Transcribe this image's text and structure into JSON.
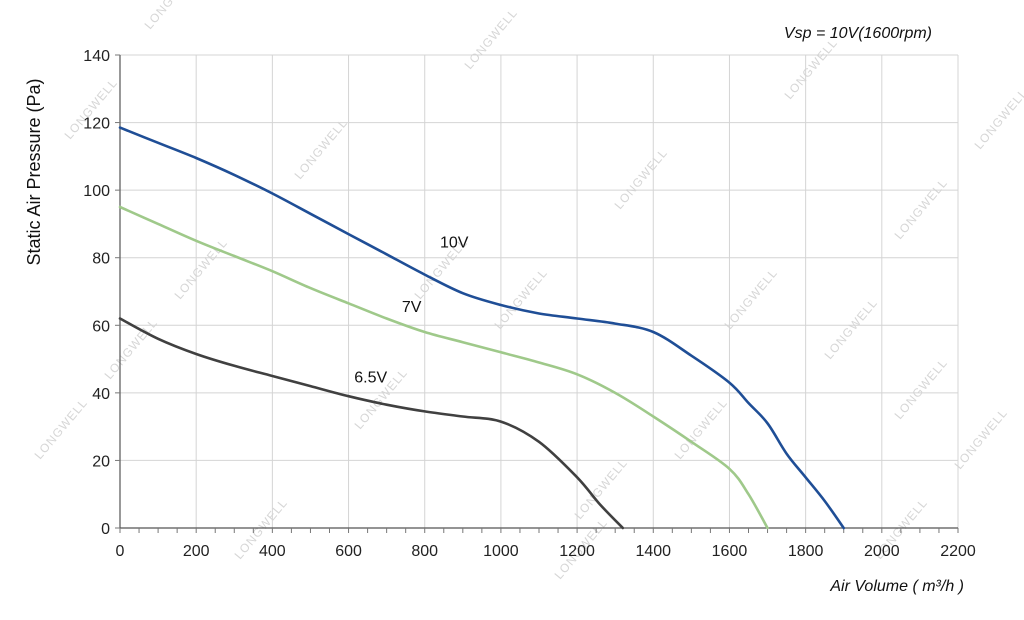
{
  "watermark_text": "LONGWELL",
  "chart_data": {
    "type": "line",
    "title": "Vsp = 10V(1600rpm)",
    "xlabel": "Air Volume ( m³/h )",
    "ylabel": "Static Air Pressure  (Pa)",
    "xlim": [
      0,
      2200
    ],
    "ylim": [
      0,
      140
    ],
    "xticks": [
      "0",
      "200",
      "400",
      "600",
      "800",
      "1000",
      "1200",
      "1400",
      "1600",
      "1800",
      "2000",
      "2200"
    ],
    "yticks": [
      "0",
      "20",
      "40",
      "60",
      "80",
      "100",
      "120",
      "140"
    ],
    "grid": true,
    "series": [
      {
        "name": "10V",
        "color": "#1f4e96",
        "points": [
          [
            0,
            118.5
          ],
          [
            100,
            114
          ],
          [
            200,
            109.5
          ],
          [
            300,
            104.5
          ],
          [
            400,
            99
          ],
          [
            500,
            93
          ],
          [
            600,
            87
          ],
          [
            700,
            81
          ],
          [
            800,
            75
          ],
          [
            900,
            69.5
          ],
          [
            1000,
            66
          ],
          [
            1100,
            63.5
          ],
          [
            1200,
            62
          ],
          [
            1300,
            60.5
          ],
          [
            1400,
            58
          ],
          [
            1500,
            51
          ],
          [
            1600,
            43
          ],
          [
            1650,
            37
          ],
          [
            1700,
            31
          ],
          [
            1750,
            22
          ],
          [
            1800,
            15
          ],
          [
            1850,
            8
          ],
          [
            1900,
            0
          ]
        ]
      },
      {
        "name": "7V",
        "color": "#9fc98a",
        "points": [
          [
            0,
            95
          ],
          [
            100,
            90
          ],
          [
            200,
            85
          ],
          [
            300,
            80.5
          ],
          [
            400,
            76
          ],
          [
            500,
            71
          ],
          [
            600,
            66.5
          ],
          [
            700,
            62
          ],
          [
            800,
            58
          ],
          [
            900,
            55
          ],
          [
            1000,
            52
          ],
          [
            1100,
            49
          ],
          [
            1200,
            45.5
          ],
          [
            1300,
            40
          ],
          [
            1400,
            33
          ],
          [
            1500,
            25.5
          ],
          [
            1600,
            17.5
          ],
          [
            1650,
            10
          ],
          [
            1700,
            0
          ]
        ]
      },
      {
        "name": "6.5V",
        "color": "#404040",
        "points": [
          [
            0,
            62
          ],
          [
            100,
            56
          ],
          [
            200,
            51.5
          ],
          [
            300,
            48
          ],
          [
            400,
            45
          ],
          [
            500,
            42
          ],
          [
            600,
            39
          ],
          [
            700,
            36.5
          ],
          [
            800,
            34.5
          ],
          [
            900,
            33
          ],
          [
            1000,
            31.5
          ],
          [
            1100,
            25.5
          ],
          [
            1200,
            15
          ],
          [
            1260,
            7
          ],
          [
            1320,
            0
          ]
        ]
      }
    ],
    "labels": [
      {
        "text": "10V",
        "x": 840,
        "y": 83
      },
      {
        "text": "7V",
        "x": 740,
        "y": 64
      },
      {
        "text": "6.5V",
        "x": 615,
        "y": 43
      }
    ]
  }
}
